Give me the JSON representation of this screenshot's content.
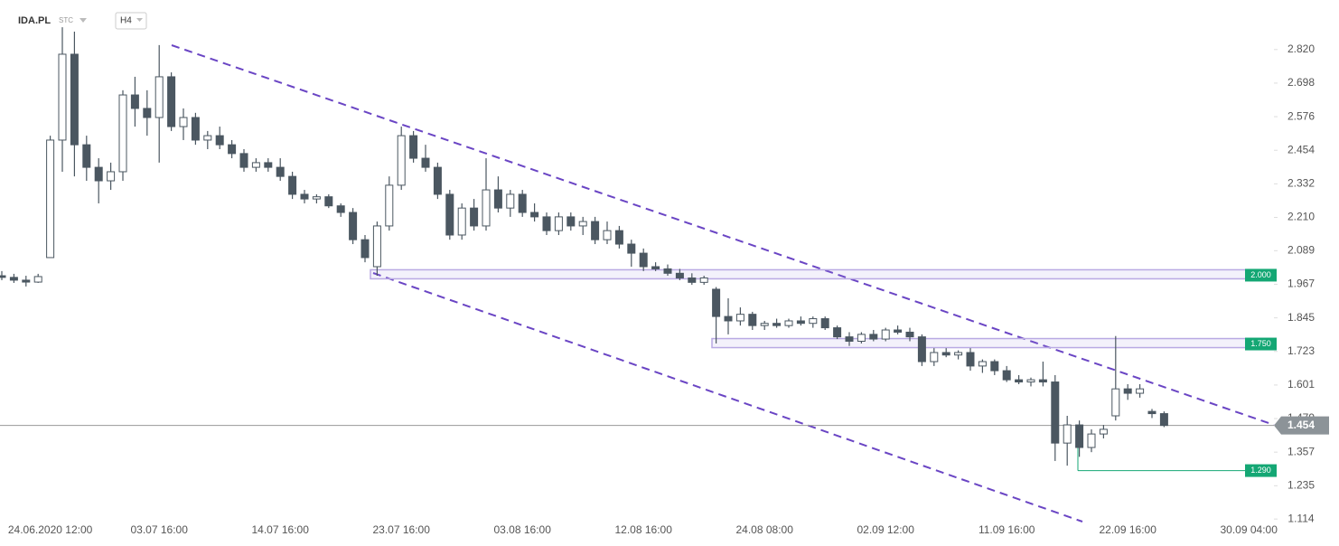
{
  "chart_data": {
    "type": "candlestick",
    "symbol": "IDA.PL",
    "source": "STC",
    "interval": "H4",
    "categories": [
      null,
      null,
      null,
      null,
      "24.06.2020 12:00",
      null,
      null,
      null,
      null,
      null,
      null,
      null,
      null,
      "03.07 16:00",
      null,
      null,
      null,
      null,
      null,
      null,
      null,
      null,
      null,
      "14.07 16:00",
      null,
      null,
      null,
      null,
      null,
      null,
      null,
      null,
      null,
      "23.07 16:00",
      null,
      null,
      null,
      null,
      null,
      null,
      null,
      null,
      null,
      "03.08 16:00",
      null,
      null,
      null,
      null,
      null,
      null,
      null,
      null,
      null,
      "12.08 16:00",
      null,
      null,
      null,
      null,
      null,
      null,
      null,
      null,
      null,
      "24.08 08:00",
      null,
      null,
      null,
      null,
      null,
      null,
      null,
      null,
      null,
      "02.09 12:00",
      null,
      null,
      null,
      null,
      null,
      null,
      null,
      null,
      null,
      "11.09 16:00",
      null,
      null,
      null,
      null,
      null,
      null,
      null,
      null,
      null,
      "22.09 16:00",
      null,
      null,
      null,
      null,
      null,
      null,
      null,
      null,
      null,
      "30.09 04:00"
    ],
    "open": [
      1.998,
      1.992,
      1.982,
      1.975,
      2.064,
      2.491,
      2.803,
      2.474,
      2.392,
      2.343,
      2.376,
      2.655,
      2.606,
      2.573,
      2.721,
      2.54,
      2.573,
      2.491,
      2.507,
      2.474,
      2.442,
      2.392,
      2.409,
      2.392,
      2.359,
      2.294,
      2.277,
      2.285,
      2.252,
      2.228,
      2.129,
      2.031,
      2.179,
      2.327,
      2.507,
      2.425,
      2.392,
      2.294,
      2.146,
      2.244,
      2.179,
      2.31,
      2.244,
      2.294,
      2.228,
      2.212,
      2.162,
      2.212,
      2.179,
      2.195,
      2.129,
      2.162,
      2.113,
      2.08,
      2.031,
      2.023,
      2.007,
      1.99,
      1.974,
      1.949,
      1.85,
      1.834,
      1.858,
      1.817,
      1.825,
      1.817,
      1.834,
      1.825,
      1.842,
      1.809,
      1.776,
      1.76,
      1.785,
      1.768,
      1.801,
      1.793,
      1.776,
      1.686,
      1.719,
      1.71,
      1.719,
      1.67,
      1.686,
      1.653,
      1.62,
      1.612,
      1.62,
      1.612,
      1.39,
      1.456,
      1.374,
      1.423,
      1.489,
      1.587,
      1.571,
      1.505,
      1.497,
      null,
      null,
      null,
      null,
      null,
      null,
      null
    ],
    "high": [
      2.015,
      2.005,
      1.998,
      2.005,
      2.507,
      2.901,
      2.885,
      2.507,
      2.425,
      2.409,
      2.672,
      2.721,
      2.672,
      2.836,
      2.737,
      2.606,
      2.59,
      2.524,
      2.54,
      2.491,
      2.458,
      2.425,
      2.425,
      2.425,
      2.376,
      2.31,
      2.294,
      2.294,
      2.261,
      2.244,
      2.146,
      2.195,
      2.359,
      2.54,
      2.524,
      2.474,
      2.409,
      2.31,
      2.261,
      2.277,
      2.425,
      2.359,
      2.31,
      2.31,
      2.261,
      2.228,
      2.228,
      2.228,
      2.212,
      2.212,
      2.195,
      2.179,
      2.129,
      2.097,
      2.047,
      2.039,
      2.023,
      2.007,
      1.998,
      1.957,
      1.916,
      1.883,
      1.867,
      1.834,
      1.842,
      1.842,
      1.85,
      1.85,
      1.85,
      1.817,
      1.793,
      1.793,
      1.801,
      1.809,
      1.817,
      1.809,
      1.785,
      1.735,
      1.735,
      1.727,
      1.735,
      1.694,
      1.694,
      1.67,
      1.637,
      1.628,
      1.686,
      1.637,
      1.489,
      1.472,
      1.44,
      1.456,
      1.779,
      1.604,
      1.604,
      1.514,
      1.505,
      null,
      null,
      null,
      null,
      null,
      null,
      null
    ],
    "low": [
      1.982,
      1.972,
      1.959,
      1.972,
      2.064,
      2.376,
      2.359,
      2.343,
      2.261,
      2.31,
      2.343,
      2.54,
      2.507,
      2.409,
      2.524,
      2.491,
      2.474,
      2.458,
      2.458,
      2.425,
      2.376,
      2.376,
      2.376,
      2.343,
      2.277,
      2.261,
      2.261,
      2.244,
      2.212,
      2.113,
      2.047,
      1.998,
      2.162,
      2.31,
      2.409,
      2.376,
      2.277,
      2.129,
      2.129,
      2.162,
      2.162,
      2.228,
      2.212,
      2.212,
      2.195,
      2.146,
      2.146,
      2.162,
      2.146,
      2.113,
      2.113,
      2.097,
      2.031,
      2.015,
      2.015,
      1.998,
      1.982,
      1.965,
      1.965,
      1.752,
      1.785,
      1.817,
      1.801,
      1.801,
      1.809,
      1.809,
      1.817,
      1.809,
      1.801,
      1.768,
      1.743,
      1.752,
      1.76,
      1.76,
      1.785,
      1.76,
      1.67,
      1.67,
      1.702,
      1.694,
      1.653,
      1.645,
      1.637,
      1.612,
      1.604,
      1.596,
      1.596,
      1.325,
      1.308,
      1.34,
      1.357,
      1.407,
      1.472,
      1.547,
      1.555,
      1.481,
      1.448,
      null,
      null,
      null,
      null,
      null,
      null,
      null
    ],
    "close": [
      1.992,
      1.982,
      1.975,
      1.995,
      2.491,
      2.803,
      2.474,
      2.392,
      2.343,
      2.376,
      2.655,
      2.606,
      2.573,
      2.721,
      2.54,
      2.573,
      2.491,
      2.507,
      2.474,
      2.442,
      2.392,
      2.409,
      2.392,
      2.359,
      2.294,
      2.277,
      2.285,
      2.252,
      2.228,
      2.129,
      2.064,
      2.179,
      2.327,
      2.507,
      2.425,
      2.392,
      2.294,
      2.146,
      2.244,
      2.179,
      2.31,
      2.244,
      2.294,
      2.228,
      2.212,
      2.162,
      2.212,
      2.179,
      2.195,
      2.129,
      2.162,
      2.113,
      2.08,
      2.031,
      2.023,
      2.007,
      1.99,
      1.974,
      1.99,
      1.85,
      1.834,
      1.858,
      1.817,
      1.825,
      1.817,
      1.834,
      1.825,
      1.842,
      1.809,
      1.776,
      1.76,
      1.785,
      1.768,
      1.801,
      1.793,
      1.776,
      1.686,
      1.719,
      1.71,
      1.719,
      1.67,
      1.686,
      1.653,
      1.62,
      1.612,
      1.62,
      1.612,
      1.39,
      1.456,
      1.374,
      1.423,
      1.44,
      1.587,
      1.571,
      1.587,
      1.497,
      1.454,
      null,
      null,
      null,
      null,
      null,
      null,
      null
    ],
    "up_color": "#ffffff",
    "down_color": "#4b5761",
    "ylim": [
      1.016,
      3.0
    ],
    "yticks": [
      {
        "value": 2.82,
        "label": "2.820"
      },
      2.698,
      2.576,
      2.454,
      2.332,
      {
        "value": 2.21,
        "label": "2.210"
      },
      2.089,
      1.967,
      1.845,
      1.723,
      1.601,
      1.479,
      1.357,
      1.235,
      1.114
    ],
    "levels": [
      {
        "value": 2,
        "label": "2.000"
      },
      {
        "value": 1.75,
        "label": "1.750"
      },
      {
        "value": 1.29,
        "label": "1.290"
      }
    ],
    "level_color": "#14a774",
    "last_price": 1.454,
    "last_color": "#8c9398"
  }
}
